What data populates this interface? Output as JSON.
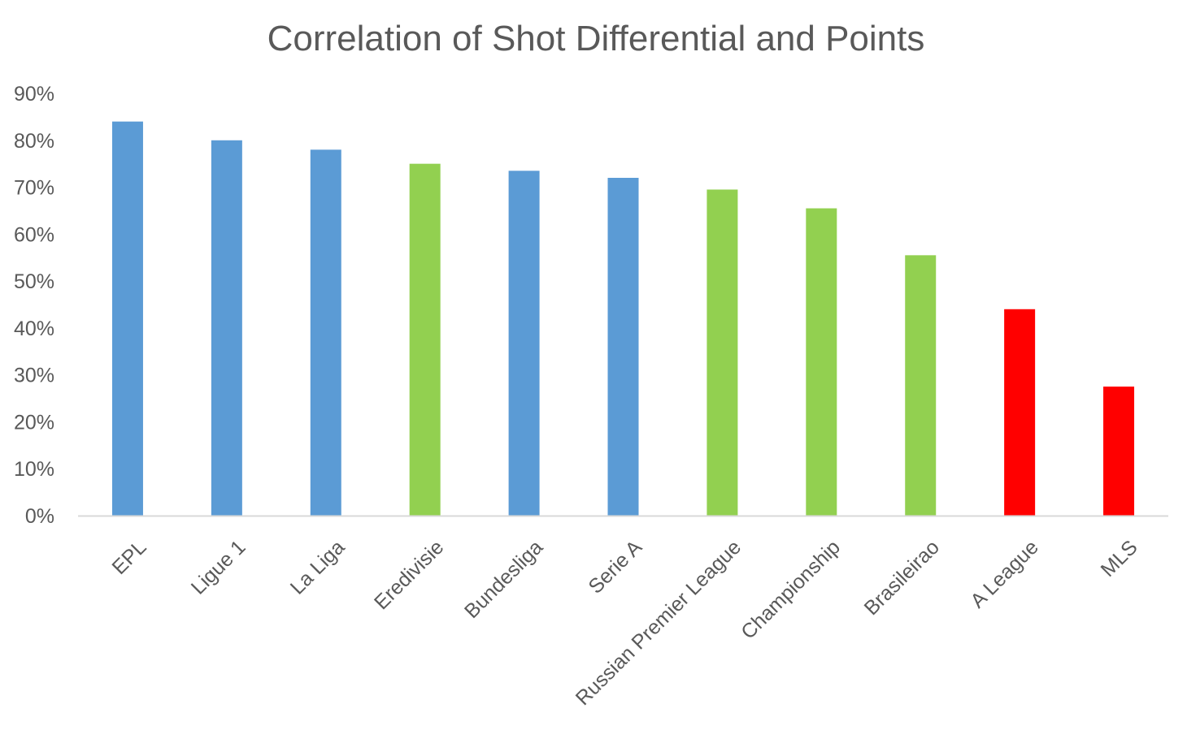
{
  "chart_data": {
    "type": "bar",
    "title": "Correlation of Shot Differential and Points",
    "xlabel": "",
    "ylabel": "",
    "ylim": [
      0,
      90
    ],
    "yticks": [
      0,
      10,
      20,
      30,
      40,
      50,
      60,
      70,
      80,
      90
    ],
    "ytick_labels": [
      "0%",
      "10%",
      "20%",
      "30%",
      "40%",
      "50%",
      "60%",
      "70%",
      "80%",
      "90%"
    ],
    "grid": false,
    "legend": "none",
    "categories": [
      "EPL",
      "Ligue 1",
      "La Liga",
      "Eredivisie",
      "Bundesliga",
      "Serie A",
      "Russian Premier League",
      "Championship",
      "Brasileirao",
      "A League",
      "MLS"
    ],
    "values": [
      84,
      80,
      78,
      75,
      73.5,
      72,
      69.5,
      65.5,
      55.5,
      44,
      27.5
    ],
    "colors": [
      "#5b9bd5",
      "#5b9bd5",
      "#5b9bd5",
      "#92d050",
      "#5b9bd5",
      "#5b9bd5",
      "#92d050",
      "#92d050",
      "#92d050",
      "#ff0000",
      "#ff0000"
    ]
  },
  "colors": {
    "axis_line": "#d9d9d9",
    "text": "#595959"
  }
}
